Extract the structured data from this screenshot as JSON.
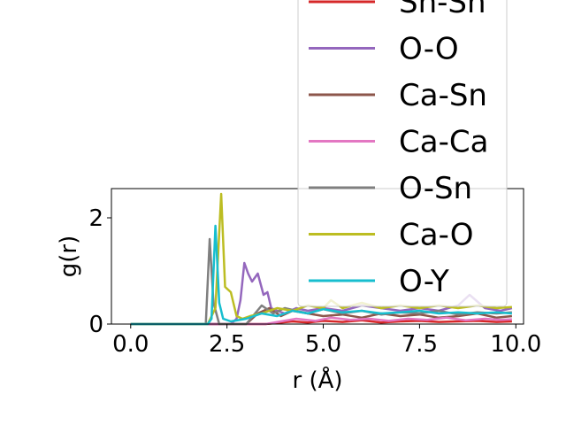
{
  "chart_data": {
    "type": "line",
    "xlabel": "r (Å)",
    "ylabel": "g(r)",
    "xlim": [
      -0.5,
      10.2
    ],
    "ylim": [
      0,
      2.55
    ],
    "xticks": [
      0.0,
      2.5,
      5.0,
      7.5,
      10.0
    ],
    "xtick_labels": [
      "0.0",
      "2.5",
      "5.0",
      "7.5",
      "10.0"
    ],
    "yticks": [
      0,
      2
    ],
    "ytick_labels": [
      "0",
      "2"
    ],
    "legend_position": "upper right (extends above axes)",
    "series": [
      {
        "name": "Sn-Sn",
        "color": "#d62728",
        "x": [
          0,
          1,
          2,
          3,
          3.5,
          3.8,
          4.2,
          4.6,
          5,
          5.5,
          6,
          6.5,
          7,
          7.5,
          8,
          8.5,
          9,
          9.5,
          9.9
        ],
        "y": [
          0,
          0,
          0,
          0,
          0,
          0.02,
          0.05,
          0.03,
          0.06,
          0.04,
          0.07,
          0.03,
          0.05,
          0.06,
          0.04,
          0.05,
          0.06,
          0.04,
          0.05
        ]
      },
      {
        "name": "O-O",
        "color": "#9467bd",
        "x": [
          0,
          1,
          2,
          2.6,
          2.75,
          2.85,
          2.95,
          3.05,
          3.15,
          3.3,
          3.45,
          3.55,
          3.65,
          3.8,
          4.0,
          4.3,
          4.6,
          5.0,
          5.5,
          6.0,
          6.5,
          7.0,
          7.5,
          8.0,
          8.5,
          8.8,
          9.2,
          9.6,
          9.9
        ],
        "y": [
          0,
          0,
          0,
          0,
          0.1,
          0.45,
          1.15,
          0.95,
          0.8,
          0.95,
          0.55,
          0.6,
          0.3,
          0.25,
          0.2,
          0.3,
          0.25,
          0.3,
          0.25,
          0.35,
          0.3,
          0.25,
          0.3,
          0.25,
          0.35,
          0.55,
          0.3,
          0.25,
          0.3
        ]
      },
      {
        "name": "Ca-Sn",
        "color": "#8c564b",
        "x": [
          0,
          1,
          2,
          3,
          3.3,
          3.6,
          3.9,
          4.2,
          4.6,
          5,
          5.5,
          6,
          6.5,
          7,
          7.5,
          8,
          8.5,
          9,
          9.5,
          9.9
        ],
        "y": [
          0,
          0,
          0,
          0,
          0.2,
          0.3,
          0.15,
          0.25,
          0.2,
          0.15,
          0.18,
          0.12,
          0.2,
          0.15,
          0.18,
          0.12,
          0.15,
          0.2,
          0.12,
          0.15
        ]
      },
      {
        "name": "Ca-Ca",
        "color": "#e377c2",
        "x": [
          0,
          1,
          2,
          3,
          3.5,
          3.9,
          4.3,
          4.8,
          5.2,
          5.7,
          6.2,
          6.7,
          7.2,
          7.7,
          8.2,
          8.7,
          9.2,
          9.6,
          9.9
        ],
        "y": [
          0,
          0,
          0,
          0,
          0,
          0.05,
          0.1,
          0.06,
          0.12,
          0.08,
          0.1,
          0.06,
          0.1,
          0.08,
          0.12,
          0.07,
          0.1,
          0.08,
          0.09
        ]
      },
      {
        "name": "O-Sn",
        "color": "#7f7f7f",
        "x": [
          0,
          1,
          1.95,
          2.05,
          2.15,
          2.3,
          2.5,
          3.0,
          3.4,
          3.7,
          4.0,
          4.3,
          4.6,
          5.0,
          5.5,
          6.0,
          6.5,
          7.0,
          7.5,
          8.0,
          8.5,
          9.0,
          9.5,
          9.9
        ],
        "y": [
          0,
          0,
          0,
          1.6,
          0.4,
          0,
          0,
          0,
          0.35,
          0.2,
          0.3,
          0.25,
          0.2,
          0.28,
          0.2,
          0.25,
          0.18,
          0.22,
          0.2,
          0.25,
          0.18,
          0.22,
          0.2,
          0.22
        ]
      },
      {
        "name": "Ca-O",
        "color": "#bcbd22",
        "x": [
          0,
          1,
          2,
          2.2,
          2.35,
          2.45,
          2.6,
          2.75,
          2.9,
          3.1,
          3.4,
          3.8,
          4.2,
          4.6,
          5.0,
          5.2,
          5.5,
          6.0,
          6.5,
          7.0,
          7.5,
          8.0,
          8.5,
          9.0,
          9.5,
          9.9
        ],
        "y": [
          0,
          0,
          0,
          0.3,
          2.45,
          0.7,
          0.6,
          0.15,
          0.1,
          0.15,
          0.2,
          0.3,
          0.25,
          0.35,
          0.3,
          0.45,
          0.3,
          0.4,
          0.3,
          0.35,
          0.3,
          0.35,
          0.3,
          0.35,
          0.3,
          0.32
        ]
      },
      {
        "name": "O-Y",
        "color": "#17becf",
        "x": [
          0,
          1,
          2,
          2.1,
          2.2,
          2.3,
          2.4,
          2.6,
          3.0,
          3.4,
          3.8,
          4.2,
          4.6,
          5.0,
          5.5,
          6.0,
          6.5,
          7.0,
          7.5,
          8.0,
          8.5,
          9.0,
          9.5,
          9.9
        ],
        "y": [
          0,
          0,
          0,
          0.1,
          1.85,
          0.4,
          0.1,
          0.05,
          0.1,
          0.2,
          0.15,
          0.25,
          0.2,
          0.28,
          0.22,
          0.25,
          0.2,
          0.22,
          0.25,
          0.2,
          0.22,
          0.2,
          0.22,
          0.2
        ]
      }
    ]
  }
}
